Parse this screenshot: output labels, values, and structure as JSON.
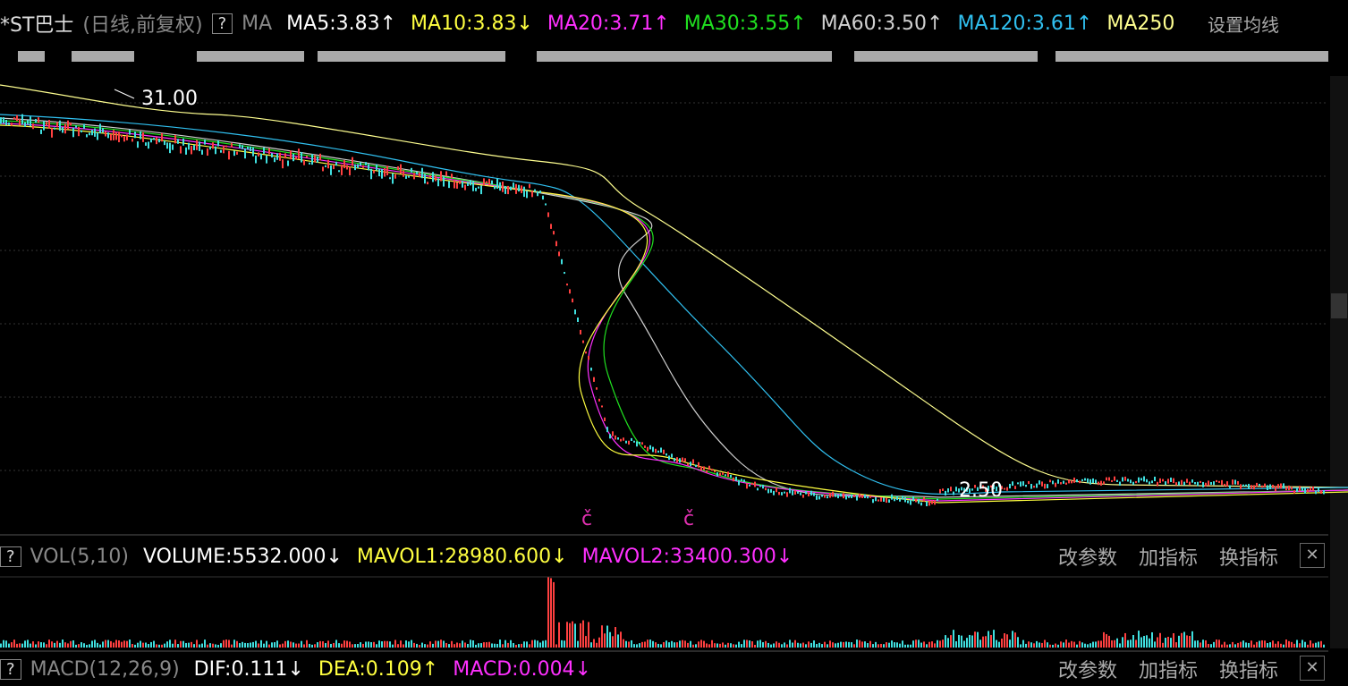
{
  "header": {
    "title": "*ST巴士",
    "mode": "(日线,前复权)",
    "help": "?",
    "indicator": "MA",
    "items": [
      {
        "label": "MA5:3.83",
        "arrow": "↑",
        "color": "#ffffff"
      },
      {
        "label": "MA10:3.83",
        "arrow": "↓",
        "color": "#ffff40"
      },
      {
        "label": "MA20:3.71",
        "arrow": "↑",
        "color": "#ff30ff"
      },
      {
        "label": "MA30:3.55",
        "arrow": "↑",
        "color": "#20e020"
      },
      {
        "label": "MA60:3.50",
        "arrow": "↑",
        "color": "#d0d0d0"
      },
      {
        "label": "MA120:3.61",
        "arrow": "↑",
        "color": "#30c0f0"
      },
      {
        "label": "MA250",
        "arrow": "",
        "color": "#ffff90"
      }
    ],
    "settings": "设置均线"
  },
  "price_chart": {
    "high_label": "31.00",
    "low_label": "2.50",
    "markers": [
      "č",
      "č"
    ]
  },
  "volume_panel": {
    "help": "?",
    "indicator": "VOL(5,10)",
    "items": [
      {
        "label": "VOLUME:5532.000",
        "arrow": "↓",
        "color": "#ffffff"
      },
      {
        "label": "MAVOL1:28980.600",
        "arrow": "↓",
        "color": "#ffff40"
      },
      {
        "label": "MAVOL2:33400.300",
        "arrow": "↓",
        "color": "#ff30ff"
      }
    ],
    "buttons": [
      "改参数",
      "加指标",
      "换指标"
    ],
    "close": "✕"
  },
  "macd_panel": {
    "help": "?",
    "indicator": "MACD(12,26,9)",
    "items": [
      {
        "label": "DIF:0.111",
        "arrow": "↓",
        "color": "#ffffff"
      },
      {
        "label": "DEA:0.109",
        "arrow": "↑",
        "color": "#ffff40"
      },
      {
        "label": "MACD:0.004",
        "arrow": "↓",
        "color": "#ff30ff"
      }
    ],
    "buttons": [
      "改参数",
      "加指标",
      "换指标"
    ],
    "close": "✕"
  }
}
